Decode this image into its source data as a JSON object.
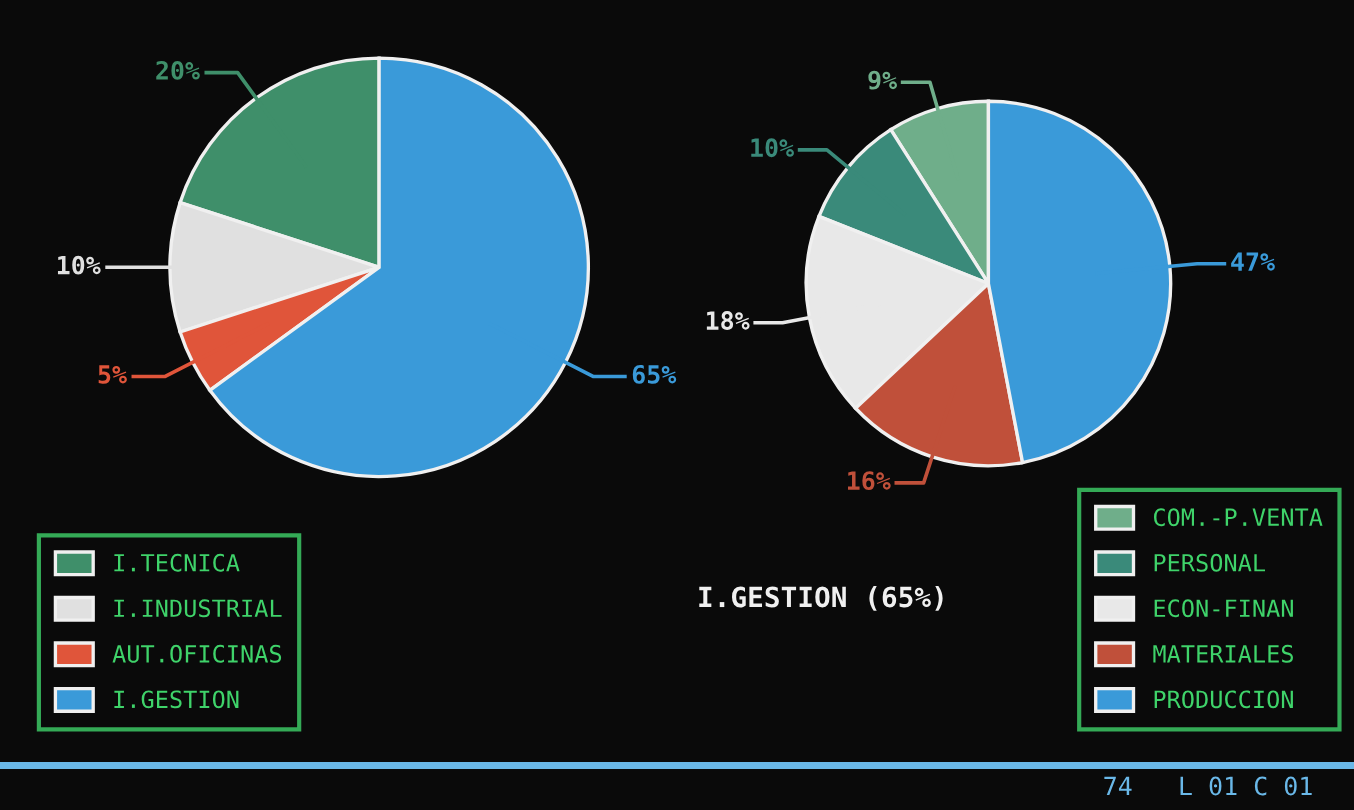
{
  "chart_data": [
    {
      "type": "pie",
      "categories": [
        "I.TECNICA",
        "I.INDUSTRIAL",
        "AUT.OFICINAS",
        "I.GESTION"
      ],
      "values": [
        20,
        10,
        5,
        65
      ],
      "colors": [
        "#3f8f6a",
        "#e0e0e0",
        "#e0553a",
        "#3a9ad9"
      ],
      "value_labels": [
        "20%",
        "10%",
        "5%",
        "65%"
      ],
      "legend": "bottom left"
    },
    {
      "type": "pie",
      "subtitle": "I.GESTION (65%)",
      "categories": [
        "COM.-P.VENTA",
        "PERSONAL",
        "ECON-FINAN",
        "MATERIALES",
        "PRODUCCION"
      ],
      "values": [
        9,
        10,
        18,
        16,
        47
      ],
      "colors": [
        "#6fae8a",
        "#3a8a7a",
        "#e8e8e8",
        "#c0503a",
        "#3a9ad9"
      ],
      "value_labels": [
        "9%",
        "10%",
        "18%",
        "16%",
        "47%"
      ],
      "legend": "bottom right",
      "annotations": [
        "74   L 01 C 01"
      ]
    }
  ]
}
